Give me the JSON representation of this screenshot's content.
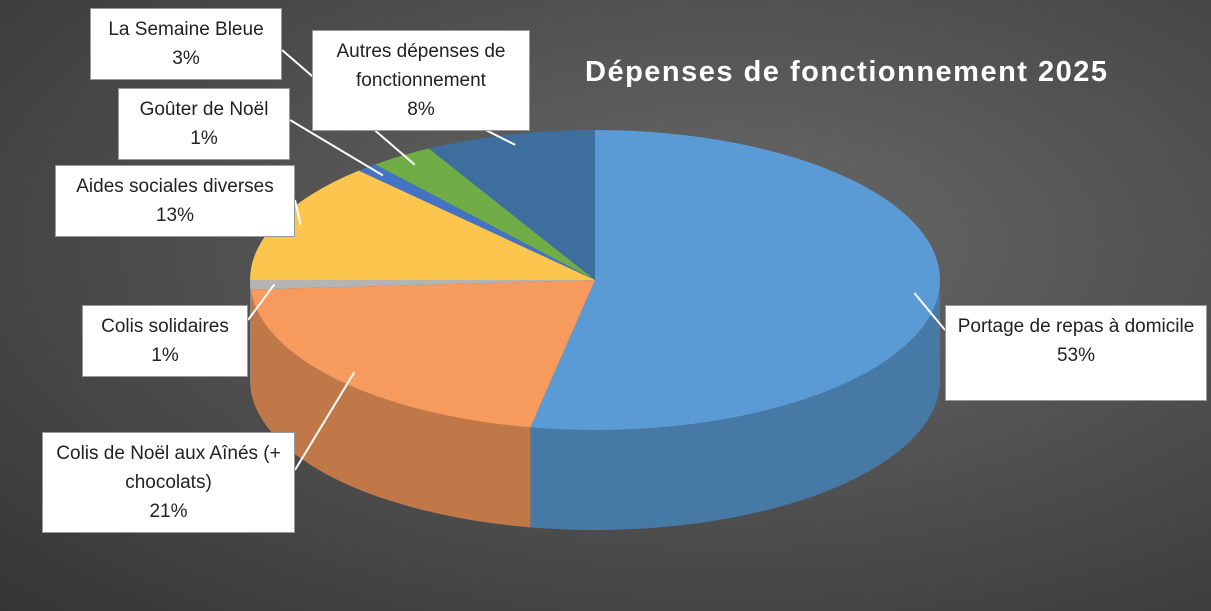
{
  "chart_data": {
    "type": "pie",
    "title": "Dépenses de fonctionnement 2025",
    "categories": [
      "Portage de repas à domicile",
      "Colis de Noël aux Aînés (+ chocolats)",
      "Colis solidaires",
      "Aides sociales diverses",
      "Goûter de Noël",
      "La Semaine Bleue",
      "Autres dépenses de fonctionnement"
    ],
    "values": [
      53,
      21,
      1,
      13,
      1,
      3,
      8
    ],
    "value_labels": [
      "53%",
      "21%",
      "1%",
      "13%",
      "1%",
      "3%",
      "8%"
    ],
    "colors": [
      "#5b9bd5",
      "#f79a5e",
      "#b4b4b4",
      "#fcc64e",
      "#4472c4",
      "#70ad47",
      "#3d6e9e"
    ]
  }
}
